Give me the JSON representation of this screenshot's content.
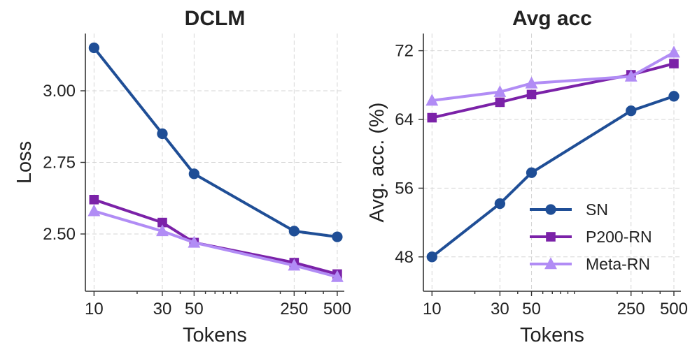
{
  "colors": {
    "SN": "#1f4e96",
    "P200-RN": "#7b22a8",
    "Meta-RN": "#b18cf5"
  },
  "chart_data": [
    {
      "type": "line",
      "title": "DCLM",
      "xlabel": "Tokens",
      "ylabel": "Loss",
      "xscale": "log",
      "x": [
        10,
        30,
        50,
        250,
        500
      ],
      "x_tick_labels": [
        "10",
        "30",
        "50",
        "250",
        "500"
      ],
      "y_ticks": [
        2.5,
        2.75,
        3.0
      ],
      "y_tick_labels": [
        "2.50",
        "2.75",
        "3.00"
      ],
      "ylim": [
        2.3,
        3.2
      ],
      "grid": true,
      "series": [
        {
          "name": "SN",
          "marker": "circle",
          "values": [
            3.15,
            2.85,
            2.71,
            2.51,
            2.49
          ]
        },
        {
          "name": "P200-RN",
          "marker": "square",
          "values": [
            2.62,
            2.54,
            2.47,
            2.4,
            2.36
          ]
        },
        {
          "name": "Meta-RN",
          "marker": "triangle",
          "values": [
            2.58,
            2.51,
            2.47,
            2.39,
            2.35
          ]
        }
      ]
    },
    {
      "type": "line",
      "title": "Avg acc",
      "xlabel": "Tokens",
      "ylabel": "Avg. acc. (%)",
      "xscale": "log",
      "x": [
        10,
        30,
        50,
        250,
        500
      ],
      "x_tick_labels": [
        "10",
        "30",
        "50",
        "250",
        "500"
      ],
      "y_ticks": [
        48,
        56,
        64,
        72
      ],
      "y_tick_labels": [
        "48",
        "56",
        "64",
        "72"
      ],
      "ylim": [
        44,
        74
      ],
      "grid": true,
      "legend": {
        "position": "lower-right",
        "entries": [
          "SN",
          "P200-RN",
          "Meta-RN"
        ]
      },
      "series": [
        {
          "name": "SN",
          "marker": "circle",
          "values": [
            48.0,
            54.2,
            57.8,
            65.0,
            66.7
          ]
        },
        {
          "name": "P200-RN",
          "marker": "square",
          "values": [
            64.2,
            66.0,
            66.9,
            69.2,
            70.5
          ]
        },
        {
          "name": "Meta-RN",
          "marker": "triangle",
          "values": [
            66.2,
            67.2,
            68.2,
            69.0,
            71.8
          ]
        }
      ]
    }
  ]
}
